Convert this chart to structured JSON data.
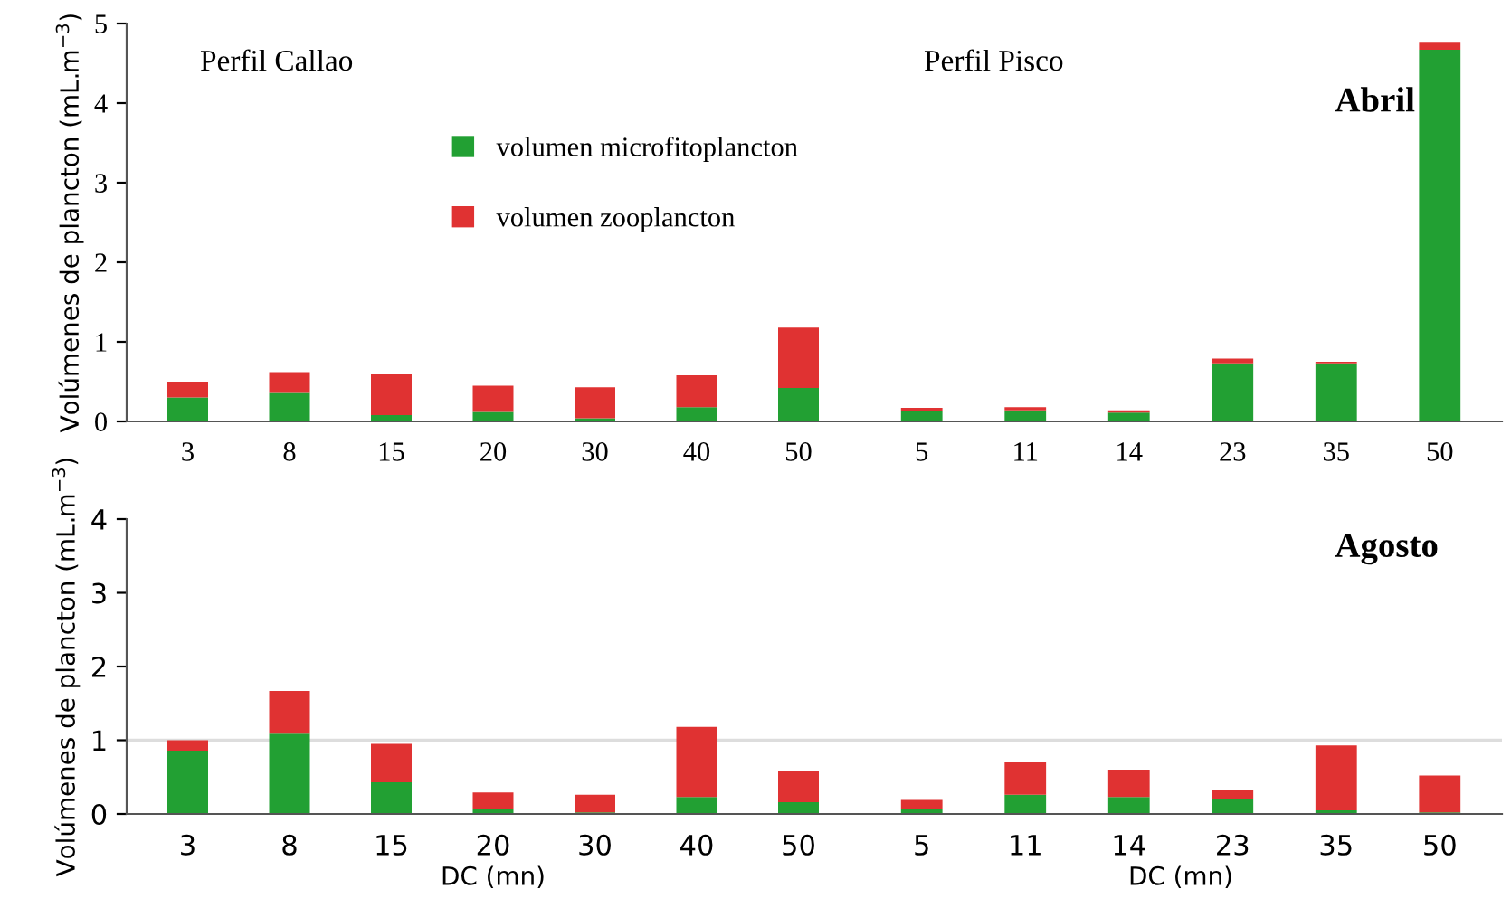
{
  "chart_data": [
    {
      "type": "bar",
      "stacked": true,
      "title": "Perfil Callao",
      "ylabel": "Volúmenes de plancton (mL.m$^{−3}$)",
      "categories": [
        "3",
        "8",
        "15",
        "20",
        "30",
        "40",
        "50"
      ],
      "ylim": [
        0,
        5
      ],
      "yticks": [
        0,
        1,
        2,
        3,
        4,
        5
      ],
      "legend": "top right",
      "series": [
        {
          "name": "volumen microfitoplancton",
          "color": "#22a033",
          "values": [
            0.3,
            0.37,
            0.08,
            0.12,
            0.04,
            0.18,
            0.42
          ]
        },
        {
          "name": "volumen zooplancton",
          "color": "#e03232",
          "values": [
            0.2,
            0.25,
            0.52,
            0.33,
            0.39,
            0.4,
            0.76
          ]
        }
      ]
    },
    {
      "type": "bar",
      "stacked": true,
      "title": "Perfil Pisco",
      "annotations": [
        "Abril"
      ],
      "categories": [
        "5",
        "11",
        "14",
        "23",
        "35",
        "50"
      ],
      "ylim": [
        0,
        5
      ],
      "yticks": [
        0,
        1,
        2,
        3,
        4,
        5
      ],
      "tick_labels": "x",
      "series": [
        {
          "color": "#22a033",
          "values": [
            0.13,
            0.14,
            0.11,
            0.73,
            0.73,
            4.67
          ]
        },
        {
          "color": "#e03232",
          "values": [
            0.04,
            0.04,
            0.03,
            0.06,
            0.02,
            0.1
          ]
        }
      ]
    },
    {
      "type": "bar",
      "stacked": true,
      "ylabel": "Volúmenes de plancton (mL.m$^{−3}$)",
      "xlabel": "DC (mn)",
      "categories": [
        "3",
        "8",
        "15",
        "20",
        "30",
        "40",
        "50"
      ],
      "ylim": [
        0,
        4
      ],
      "yticks": [
        0,
        1,
        2,
        3,
        4
      ],
      "ref_lines": [
        {
          "axis": "y",
          "value": 1,
          "color": "#dddddd"
        }
      ],
      "series": [
        {
          "color": "#22a033",
          "values": [
            0.86,
            1.09,
            0.43,
            0.07,
            0.02,
            0.23,
            0.16
          ]
        },
        {
          "color": "#e03232",
          "values": [
            0.14,
            0.58,
            0.52,
            0.22,
            0.24,
            0.95,
            0.43
          ]
        }
      ]
    },
    {
      "type": "bar",
      "stacked": true,
      "xlabel": "DC (mn)",
      "annotations": [
        "Agosto"
      ],
      "categories": [
        "5",
        "11",
        "14",
        "23",
        "35",
        "50"
      ],
      "ylim": [
        0,
        4
      ],
      "yticks": [
        0,
        1,
        2,
        3,
        4
      ],
      "tick_labels": "x",
      "ref_lines": [
        {
          "axis": "y",
          "value": 1,
          "color": "#dddddd"
        }
      ],
      "series": [
        {
          "color": "#22a033",
          "values": [
            0.07,
            0.26,
            0.23,
            0.2,
            0.05,
            0.02
          ]
        },
        {
          "color": "#e03232",
          "values": [
            0.12,
            0.44,
            0.37,
            0.13,
            0.88,
            0.5
          ]
        }
      ]
    }
  ]
}
